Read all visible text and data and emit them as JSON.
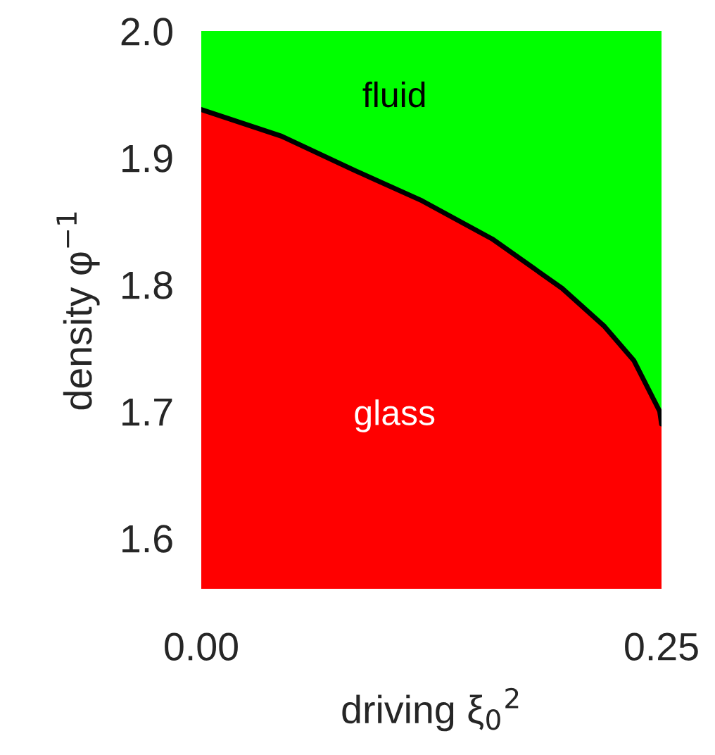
{
  "chart_data": {
    "type": "area",
    "xlabel": "driving ξ$_{0}$$^{2}$",
    "ylabel": "density φ$^{−1}$",
    "x": [
      0,
      0.0436,
      0.0818,
      0.12,
      0.158,
      0.196,
      0.219,
      0.235,
      0.242,
      0.249,
      0.25
    ],
    "series": [
      {
        "color": "#ff0000",
        "values": [
          1.938,
          1.917,
          1.891,
          1.866,
          1.836,
          1.797,
          1.767,
          1.74,
          1.72,
          1.7,
          1.69
        ]
      }
    ],
    "bands": [
      {
        "axis": "y",
        "from": 1.56,
        "to": 2.0,
        "color": "#00ff00"
      }
    ],
    "annotations": [
      "fluid",
      "glass"
    ],
    "xlim": [
      0,
      0.25
    ],
    "ylim": [
      1.56,
      2.0
    ],
    "xticks": [
      {
        "value": 0,
        "label": "0.00"
      },
      {
        "value": 0.25,
        "label": "0.25"
      }
    ],
    "yticks": [
      1.6,
      1.7,
      1.8,
      1.9,
      {
        "value": 2.0,
        "label": "2.0"
      }
    ],
    "grid": false,
    "legend": false
  }
}
